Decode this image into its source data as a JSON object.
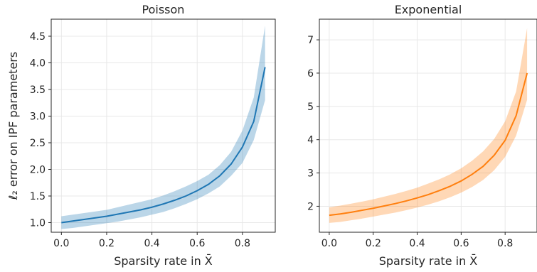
{
  "chart_data": [
    {
      "type": "line",
      "title": "Poisson",
      "xlabel": "Sparsity rate in X̄",
      "ylabel": "ℓ₂ error on IPF parameters",
      "xlim": [
        -0.045,
        0.945
      ],
      "ylim": [
        0.82,
        4.82
      ],
      "xticks": [
        "0.0",
        "0.2",
        "0.4",
        "0.6",
        "0.8"
      ],
      "yticks": [
        "1.0",
        "1.5",
        "2.0",
        "2.5",
        "3.0",
        "3.5",
        "4.0",
        "4.5"
      ],
      "grid": true,
      "color": "#1f77b4",
      "x": [
        0.0,
        0.05,
        0.1,
        0.15,
        0.2,
        0.25,
        0.3,
        0.35,
        0.4,
        0.45,
        0.5,
        0.55,
        0.6,
        0.65,
        0.7,
        0.75,
        0.8,
        0.85,
        0.9
      ],
      "series": [
        {
          "values": [
            1.0,
            1.03,
            1.06,
            1.09,
            1.12,
            1.16,
            1.2,
            1.24,
            1.29,
            1.35,
            1.42,
            1.5,
            1.6,
            1.72,
            1.88,
            2.1,
            2.42,
            2.9,
            3.92
          ],
          "lower": [
            0.88,
            0.9,
            0.93,
            0.96,
            0.99,
            1.02,
            1.06,
            1.1,
            1.15,
            1.2,
            1.27,
            1.35,
            1.44,
            1.55,
            1.68,
            1.88,
            2.12,
            2.55,
            3.3
          ],
          "upper": [
            1.12,
            1.15,
            1.18,
            1.21,
            1.24,
            1.29,
            1.34,
            1.39,
            1.44,
            1.51,
            1.59,
            1.68,
            1.78,
            1.9,
            2.08,
            2.33,
            2.73,
            3.35,
            4.7
          ]
        }
      ]
    },
    {
      "type": "line",
      "title": "Exponential",
      "xlabel": "Sparsity rate in X̄",
      "ylabel": "",
      "xlim": [
        -0.045,
        0.945
      ],
      "ylim": [
        1.22,
        7.62
      ],
      "xticks": [
        "0.0",
        "0.2",
        "0.4",
        "0.6",
        "0.8"
      ],
      "yticks": [
        "2",
        "3",
        "4",
        "5",
        "6",
        "7"
      ],
      "grid": true,
      "color": "#ff7f0e",
      "x": [
        0.0,
        0.05,
        0.1,
        0.15,
        0.2,
        0.25,
        0.3,
        0.35,
        0.4,
        0.45,
        0.5,
        0.55,
        0.6,
        0.65,
        0.7,
        0.75,
        0.8,
        0.85,
        0.9
      ],
      "series": [
        {
          "values": [
            1.73,
            1.77,
            1.82,
            1.88,
            1.94,
            2.01,
            2.08,
            2.16,
            2.25,
            2.35,
            2.47,
            2.6,
            2.76,
            2.96,
            3.2,
            3.53,
            3.98,
            4.72,
            6.0
          ],
          "lower": [
            1.5,
            1.53,
            1.58,
            1.63,
            1.69,
            1.75,
            1.81,
            1.88,
            1.96,
            2.05,
            2.15,
            2.27,
            2.41,
            2.58,
            2.79,
            3.08,
            3.48,
            4.12,
            5.2
          ],
          "upper": [
            1.97,
            2.02,
            2.08,
            2.14,
            2.21,
            2.29,
            2.37,
            2.46,
            2.56,
            2.68,
            2.81,
            2.96,
            3.14,
            3.37,
            3.65,
            4.02,
            4.55,
            5.45,
            7.35
          ]
        }
      ]
    }
  ]
}
